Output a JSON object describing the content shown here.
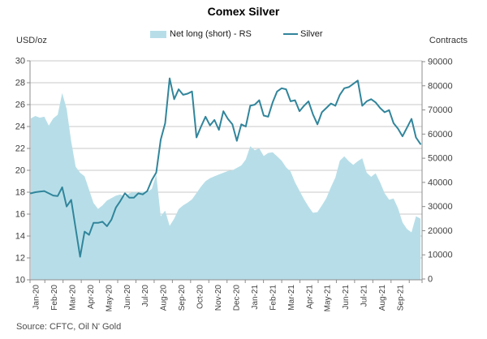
{
  "title": "Comex Silver",
  "source": "Source: CFTC, Oil N' Gold",
  "colors": {
    "area": "#B7DEE8",
    "line": "#31859B",
    "grid": "#C9C9C9",
    "axis": "#8C8C8C",
    "tick_text": "#3F3F3F"
  },
  "chart_data": {
    "type": "area+line combo",
    "title": "Comex Silver",
    "grid": true,
    "legend_position": "top",
    "x_labels": [
      "Jan-20",
      "Feb-20",
      "Mar-20",
      "Apr-20",
      "May-20",
      "Jun-20",
      "Jul-20",
      "Aug-20",
      "Sep-20",
      "Oct-20",
      "Nov-20",
      "Dec-20",
      "Jan-21",
      "Feb-21",
      "Mar-21",
      "Apr-21",
      "May-21",
      "Jun-21",
      "Jul-21",
      "Aug-21",
      "Sep-21"
    ],
    "left_axis": {
      "label": "USD/oz",
      "range": [
        10,
        30
      ],
      "ticks": [
        30,
        28,
        26,
        24,
        22,
        20,
        18,
        16,
        14,
        12,
        10
      ]
    },
    "right_axis": {
      "label": "Contracts",
      "range": [
        0,
        90000
      ],
      "ticks": [
        90000,
        80000,
        70000,
        60000,
        50000,
        40000,
        30000,
        20000,
        10000,
        0
      ]
    },
    "series": [
      {
        "name": "Net long (short) - RS",
        "type": "area",
        "axis": "right",
        "color": "#B7DEE8",
        "values": [
          66500,
          67500,
          66800,
          67200,
          63500,
          66500,
          68000,
          77000,
          70500,
          57000,
          46500,
          44000,
          42500,
          37000,
          31500,
          29000,
          30500,
          32500,
          33500,
          34500,
          35000,
          34200,
          35500,
          36000,
          35500,
          36200,
          36000,
          37300,
          43300,
          26000,
          28300,
          22000,
          25000,
          28900,
          30500,
          31600,
          33000,
          35600,
          38300,
          40500,
          41700,
          42500,
          43300,
          44000,
          44700,
          45000,
          46000,
          47000,
          49500,
          55000,
          53300,
          54100,
          50900,
          52200,
          52500,
          50800,
          49000,
          46200,
          44500,
          40000,
          36500,
          33000,
          30000,
          27400,
          27700,
          30500,
          33500,
          38000,
          42000,
          49000,
          50800,
          48800,
          47300,
          48800,
          50000,
          44000,
          42300,
          43800,
          40000,
          35500,
          32800,
          33300,
          29300,
          23400,
          20700,
          19300,
          26000,
          25000
        ]
      },
      {
        "name": "Silver",
        "type": "line",
        "axis": "left",
        "color": "#31859B",
        "values": [
          17.9,
          18.0,
          18.05,
          18.1,
          17.9,
          17.7,
          17.65,
          18.45,
          16.7,
          17.3,
          14.7,
          12.1,
          14.4,
          14.1,
          15.2,
          15.2,
          15.3,
          14.9,
          15.5,
          16.6,
          17.2,
          17.9,
          17.5,
          17.5,
          17.9,
          17.8,
          18.1,
          19.1,
          19.8,
          22.8,
          24.3,
          28.4,
          26.5,
          27.4,
          26.9,
          27.0,
          27.2,
          23.0,
          24.0,
          24.9,
          24.1,
          24.6,
          23.7,
          25.4,
          24.7,
          24.2,
          22.7,
          24.2,
          24.0,
          25.9,
          26.0,
          26.4,
          25.0,
          24.9,
          26.2,
          27.2,
          27.5,
          27.4,
          26.3,
          26.4,
          25.4,
          25.9,
          26.3,
          25.1,
          24.2,
          25.3,
          25.7,
          26.1,
          25.9,
          26.9,
          27.5,
          27.6,
          27.9,
          28.2,
          25.9,
          26.3,
          26.5,
          26.2,
          25.7,
          25.3,
          25.5,
          24.3,
          23.8,
          23.1,
          23.9,
          24.7,
          23.0,
          22.4
        ]
      }
    ]
  }
}
